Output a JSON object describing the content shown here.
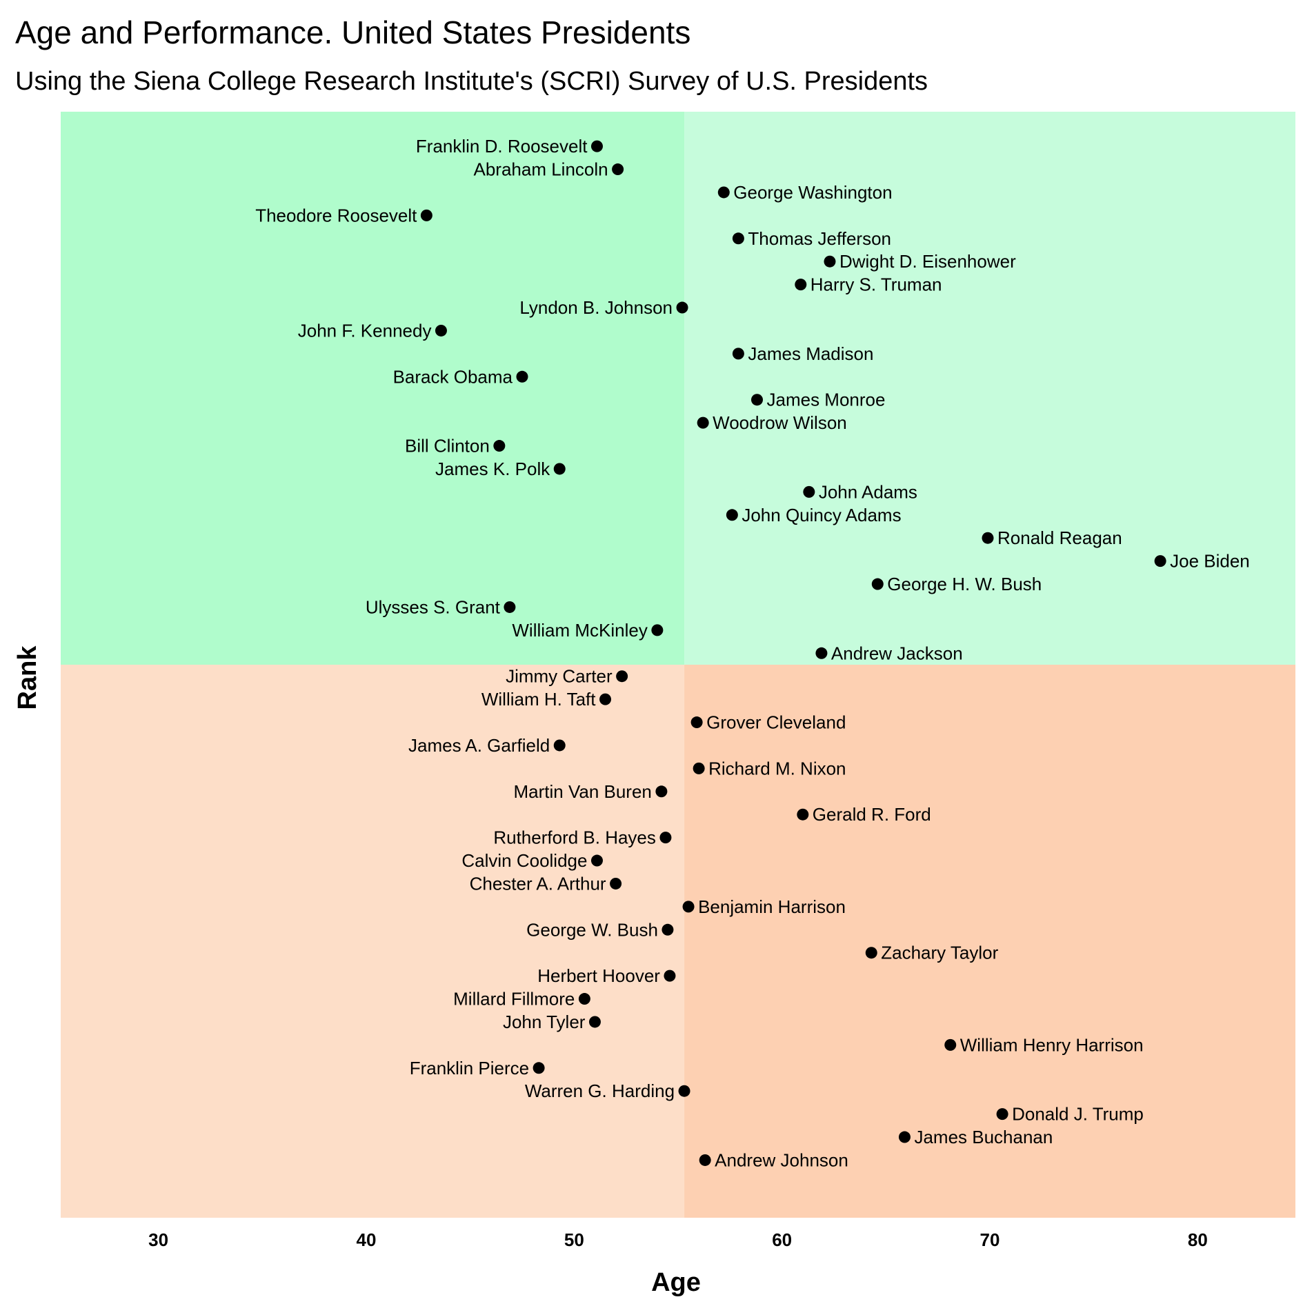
{
  "chart_data": {
    "type": "scatter",
    "title": "Age and Performance. United States Presidents",
    "subtitle": "Using the Siena College Research Institute's (SCRI) Survey of U.S. Presidents",
    "xlabel": "Age",
    "ylabel": "Rank",
    "xlim": [
      25.3,
      84.7
    ],
    "ylim": [
      47.5,
      -0.5
    ],
    "xticks": [
      30,
      40,
      50,
      60,
      70,
      80
    ],
    "y_tick_labels_shown": false,
    "grid": false,
    "legend": "none",
    "quadrant_split": {
      "x": 55.3,
      "y": 23.5
    },
    "quadrant_colors": {
      "top_left": "#b0fccc",
      "top_right": "#c6fcdc",
      "bottom_left": "#fddec8",
      "bottom_right": "#fdd0b2"
    },
    "point_color": "#000000",
    "points": [
      {
        "name": "Franklin D. Roosevelt",
        "age": 51.1,
        "rank": 1,
        "label_side": "left"
      },
      {
        "name": "Abraham Lincoln",
        "age": 52.1,
        "rank": 2,
        "label_side": "left"
      },
      {
        "name": "George Washington",
        "age": 57.2,
        "rank": 3,
        "label_side": "right"
      },
      {
        "name": "Theodore Roosevelt",
        "age": 42.9,
        "rank": 4,
        "label_side": "left"
      },
      {
        "name": "Thomas Jefferson",
        "age": 57.9,
        "rank": 5,
        "label_side": "right"
      },
      {
        "name": "Dwight D. Eisenhower",
        "age": 62.3,
        "rank": 6,
        "label_side": "right"
      },
      {
        "name": "Harry S. Truman",
        "age": 60.9,
        "rank": 7,
        "label_side": "right"
      },
      {
        "name": "Lyndon B. Johnson",
        "age": 55.2,
        "rank": 8,
        "label_side": "left"
      },
      {
        "name": "John F. Kennedy",
        "age": 43.6,
        "rank": 9,
        "label_side": "left"
      },
      {
        "name": "James Madison",
        "age": 57.9,
        "rank": 10,
        "label_side": "right"
      },
      {
        "name": "Barack Obama",
        "age": 47.5,
        "rank": 11,
        "label_side": "left"
      },
      {
        "name": "James Monroe",
        "age": 58.8,
        "rank": 12,
        "label_side": "right"
      },
      {
        "name": "Woodrow Wilson",
        "age": 56.2,
        "rank": 13,
        "label_side": "right"
      },
      {
        "name": "Bill Clinton",
        "age": 46.4,
        "rank": 14,
        "label_side": "left"
      },
      {
        "name": "James K. Polk",
        "age": 49.3,
        "rank": 15,
        "label_side": "left"
      },
      {
        "name": "John Adams",
        "age": 61.3,
        "rank": 16,
        "label_side": "right"
      },
      {
        "name": "John Quincy Adams",
        "age": 57.6,
        "rank": 17,
        "label_side": "right"
      },
      {
        "name": "Ronald Reagan",
        "age": 69.9,
        "rank": 18,
        "label_side": "right"
      },
      {
        "name": "Joe Biden",
        "age": 78.2,
        "rank": 19,
        "label_side": "right"
      },
      {
        "name": "George H. W. Bush",
        "age": 64.6,
        "rank": 20,
        "label_side": "right"
      },
      {
        "name": "Ulysses S. Grant",
        "age": 46.9,
        "rank": 21,
        "label_side": "left"
      },
      {
        "name": "William McKinley",
        "age": 54.0,
        "rank": 22,
        "label_side": "left"
      },
      {
        "name": "Andrew Jackson",
        "age": 61.9,
        "rank": 23,
        "label_side": "right"
      },
      {
        "name": "Jimmy Carter",
        "age": 52.3,
        "rank": 24,
        "label_side": "left"
      },
      {
        "name": "William H. Taft",
        "age": 51.5,
        "rank": 25,
        "label_side": "left"
      },
      {
        "name": "Grover Cleveland",
        "age": 55.9,
        "rank": 26,
        "label_side": "right"
      },
      {
        "name": "James A. Garfield",
        "age": 49.3,
        "rank": 27,
        "label_side": "left"
      },
      {
        "name": "Richard M. Nixon",
        "age": 56.0,
        "rank": 28,
        "label_side": "right"
      },
      {
        "name": "Martin Van Buren",
        "age": 54.2,
        "rank": 29,
        "label_side": "left"
      },
      {
        "name": "Gerald R. Ford",
        "age": 61.0,
        "rank": 30,
        "label_side": "right"
      },
      {
        "name": "Rutherford B. Hayes",
        "age": 54.4,
        "rank": 31,
        "label_side": "left"
      },
      {
        "name": "Calvin Coolidge",
        "age": 51.1,
        "rank": 32,
        "label_side": "left"
      },
      {
        "name": "Chester A. Arthur",
        "age": 52.0,
        "rank": 33,
        "label_side": "left"
      },
      {
        "name": "Benjamin Harrison",
        "age": 55.5,
        "rank": 34,
        "label_side": "right"
      },
      {
        "name": "George W. Bush",
        "age": 54.5,
        "rank": 35,
        "label_side": "left"
      },
      {
        "name": "Zachary Taylor",
        "age": 64.3,
        "rank": 36,
        "label_side": "right"
      },
      {
        "name": "Herbert Hoover",
        "age": 54.6,
        "rank": 37,
        "label_side": "left"
      },
      {
        "name": "Millard Fillmore",
        "age": 50.5,
        "rank": 38,
        "label_side": "left"
      },
      {
        "name": "John Tyler",
        "age": 51.0,
        "rank": 39,
        "label_side": "left"
      },
      {
        "name": "William Henry Harrison",
        "age": 68.1,
        "rank": 40,
        "label_side": "right"
      },
      {
        "name": "Franklin Pierce",
        "age": 48.3,
        "rank": 41,
        "label_side": "left"
      },
      {
        "name": "Warren G. Harding",
        "age": 55.3,
        "rank": 42,
        "label_side": "left"
      },
      {
        "name": "Donald J. Trump",
        "age": 70.6,
        "rank": 43,
        "label_side": "right"
      },
      {
        "name": "James Buchanan",
        "age": 65.9,
        "rank": 44,
        "label_side": "right"
      },
      {
        "name": "Andrew Johnson",
        "age": 56.3,
        "rank": 45,
        "label_side": "right"
      }
    ]
  }
}
